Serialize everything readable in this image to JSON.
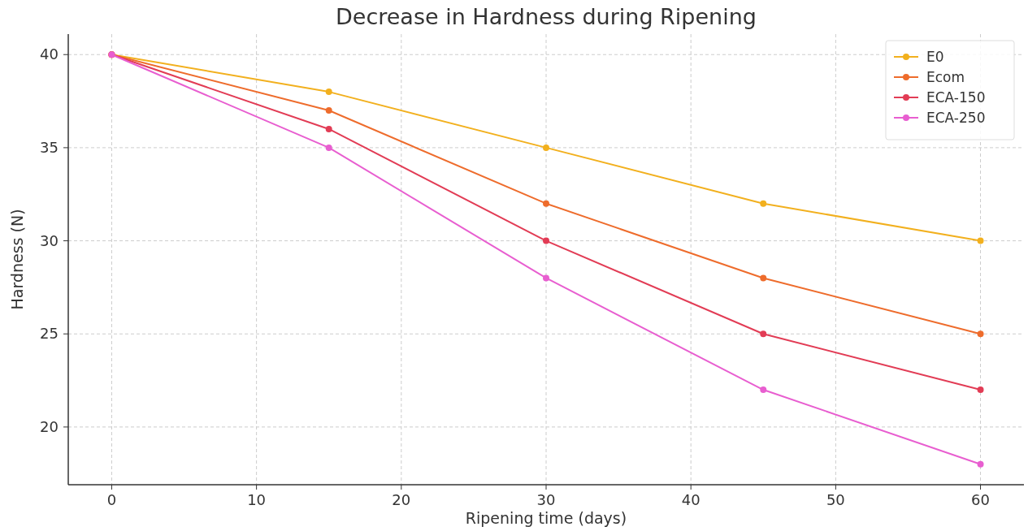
{
  "chart_data": {
    "type": "line",
    "title": "Decrease in Hardness during Ripening",
    "xlabel": "Ripening time (days)",
    "ylabel": "Hardness (N)",
    "x": [
      0,
      15,
      30,
      45,
      60
    ],
    "series": [
      {
        "name": "E0",
        "color": "#f2b01e",
        "values": [
          40,
          38,
          35,
          32,
          30
        ]
      },
      {
        "name": "Ecom",
        "color": "#ee6c2c",
        "values": [
          40,
          37,
          32,
          28,
          25
        ]
      },
      {
        "name": "ECA-150",
        "color": "#e23c55",
        "values": [
          40,
          36,
          30,
          25,
          22
        ]
      },
      {
        "name": "ECA-250",
        "color": "#e85ed0",
        "values": [
          40,
          35,
          28,
          22,
          18
        ]
      }
    ],
    "xlim": [
      -3,
      63
    ],
    "ylim": [
      16.9,
      41.1
    ],
    "xticks": [
      0,
      10,
      20,
      30,
      40,
      50,
      60
    ],
    "yticks": [
      20,
      25,
      30,
      35,
      40
    ],
    "grid": true,
    "legend": "top right",
    "marker": "circle",
    "line_style": "solid"
  }
}
